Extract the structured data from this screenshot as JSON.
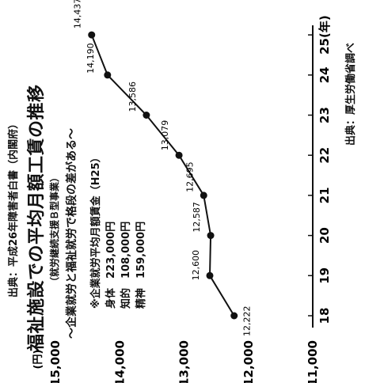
{
  "source_top": "出典：平成26年障害者白書（内閣府）",
  "title": "福祉施設での平均月額工賃の推移",
  "subtitle1": "（就労継続支援Ｂ型事業）",
  "subtitle2": "～企業就労と福祉就労で格段の差がある～",
  "source_bottom": "出典：厚生労働省調べ",
  "note": {
    "title": "※企業就労平均月額賃金（H25）",
    "rows": [
      {
        "label": "身体",
        "value": "223,000円"
      },
      {
        "label": "知的",
        "value": "108,000円"
      },
      {
        "label": "精神",
        "value": "159,000円"
      }
    ]
  },
  "chart_data": {
    "type": "line",
    "x": [
      "18",
      "19",
      "20",
      "21",
      "22",
      "23",
      "24",
      "25(年)"
    ],
    "y_unit_label": "(円)",
    "y_ticks": [
      "11,000",
      "12,000",
      "13,000",
      "14,000",
      "15,000"
    ],
    "ylim": [
      11000,
      15000
    ],
    "series": [
      {
        "values": [
          12222,
          12600,
          12587,
          12695,
          13079,
          13586,
          14190,
          14437
        ]
      }
    ],
    "point_labels": [
      "12,222",
      "12,600",
      "12,587",
      "12,695",
      "13,079",
      "13,586",
      "14,190",
      "14,437"
    ],
    "grid": false
  }
}
